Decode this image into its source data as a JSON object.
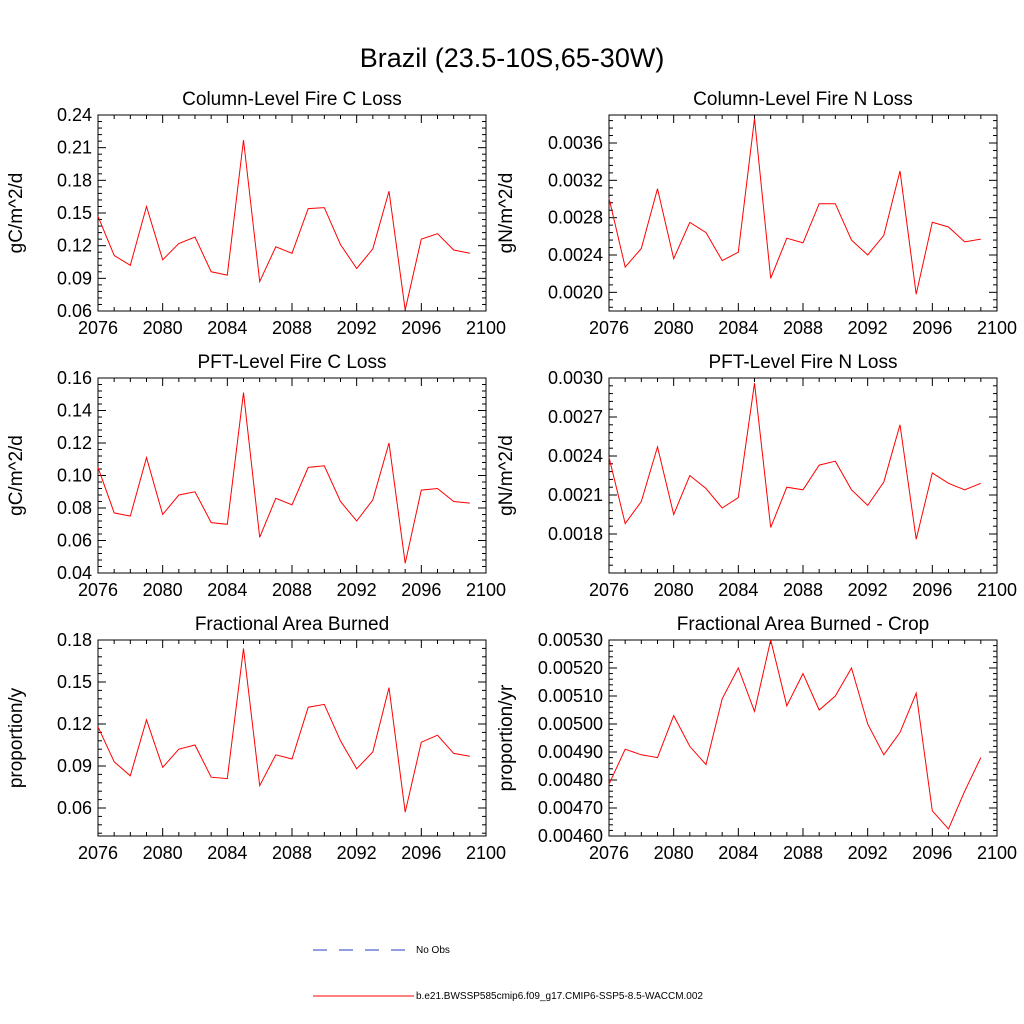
{
  "title": "Brazil (23.5-10S,65-30W)",
  "legend": {
    "obs_label": "No Obs",
    "model_label": "b.e21.BWSSP585cmip6.f09_g17.CMIP6-SSP5-8.5-WACCM.002",
    "obs_color": "#1f3fbf",
    "model_color": "#ff0000"
  },
  "chart_data": [
    {
      "type": "line",
      "title": "Column-Level Fire C Loss",
      "ylabel": "gC/m^2/d",
      "xlim": [
        2076,
        2100
      ],
      "ylim": [
        0.06,
        0.24
      ],
      "xticks": [
        2076,
        2080,
        2084,
        2088,
        2092,
        2096,
        2100
      ],
      "yticks": [
        0.06,
        0.09,
        0.12,
        0.15,
        0.18,
        0.21,
        0.24
      ],
      "ytick_labels": [
        "0.06",
        "0.09",
        "0.12",
        "0.15",
        "0.18",
        "0.21",
        "0.24"
      ],
      "x": [
        2076,
        2077,
        2078,
        2079,
        2080,
        2081,
        2082,
        2083,
        2084,
        2085,
        2086,
        2087,
        2088,
        2089,
        2090,
        2091,
        2092,
        2093,
        2094,
        2095,
        2096,
        2097,
        2098,
        2099
      ],
      "values": [
        0.147,
        0.111,
        0.102,
        0.156,
        0.107,
        0.122,
        0.128,
        0.096,
        0.093,
        0.217,
        0.087,
        0.119,
        0.113,
        0.154,
        0.155,
        0.121,
        0.099,
        0.117,
        0.17,
        0.061,
        0.126,
        0.131,
        0.116,
        0.113
      ]
    },
    {
      "type": "line",
      "title": "Column-Level Fire N Loss",
      "ylabel": "gN/m^2/d",
      "xlim": [
        2076,
        2100
      ],
      "ylim": [
        0.0018,
        0.0039
      ],
      "xticks": [
        2076,
        2080,
        2084,
        2088,
        2092,
        2096,
        2100
      ],
      "yticks": [
        0.002,
        0.0024,
        0.0028,
        0.0032,
        0.0036
      ],
      "ytick_labels": [
        "0.0020",
        "0.0024",
        "0.0028",
        "0.0032",
        "0.0036"
      ],
      "x": [
        2076,
        2077,
        2078,
        2079,
        2080,
        2081,
        2082,
        2083,
        2084,
        2085,
        2086,
        2087,
        2088,
        2089,
        2090,
        2091,
        2092,
        2093,
        2094,
        2095,
        2096,
        2097,
        2098,
        2099
      ],
      "values": [
        0.00301,
        0.00227,
        0.00247,
        0.00311,
        0.00236,
        0.00275,
        0.00264,
        0.00234,
        0.00243,
        0.00386,
        0.00215,
        0.00258,
        0.00253,
        0.00295,
        0.00295,
        0.00256,
        0.0024,
        0.00261,
        0.0033,
        0.00198,
        0.00275,
        0.0027,
        0.00254,
        0.00257
      ]
    },
    {
      "type": "line",
      "title": "PFT-Level Fire C Loss",
      "ylabel": "gC/m^2/d",
      "xlim": [
        2076,
        2100
      ],
      "ylim": [
        0.04,
        0.16
      ],
      "xticks": [
        2076,
        2080,
        2084,
        2088,
        2092,
        2096,
        2100
      ],
      "yticks": [
        0.04,
        0.06,
        0.08,
        0.1,
        0.12,
        0.14,
        0.16
      ],
      "ytick_labels": [
        "0.04",
        "0.06",
        "0.08",
        "0.10",
        "0.12",
        "0.14",
        "0.16"
      ],
      "x": [
        2076,
        2077,
        2078,
        2079,
        2080,
        2081,
        2082,
        2083,
        2084,
        2085,
        2086,
        2087,
        2088,
        2089,
        2090,
        2091,
        2092,
        2093,
        2094,
        2095,
        2096,
        2097,
        2098,
        2099
      ],
      "values": [
        0.105,
        0.077,
        0.075,
        0.111,
        0.076,
        0.088,
        0.09,
        0.071,
        0.07,
        0.151,
        0.062,
        0.086,
        0.082,
        0.105,
        0.106,
        0.084,
        0.072,
        0.085,
        0.12,
        0.046,
        0.091,
        0.092,
        0.084,
        0.083
      ]
    },
    {
      "type": "line",
      "title": "PFT-Level Fire N Loss",
      "ylabel": "gN/m^2/d",
      "xlim": [
        2076,
        2100
      ],
      "ylim": [
        0.0015,
        0.003
      ],
      "xticks": [
        2076,
        2080,
        2084,
        2088,
        2092,
        2096,
        2100
      ],
      "yticks": [
        0.0018,
        0.0021,
        0.0024,
        0.0027,
        0.003
      ],
      "ytick_labels": [
        "0.0018",
        "0.0021",
        "0.0024",
        "0.0027",
        "0.0030"
      ],
      "x": [
        2076,
        2077,
        2078,
        2079,
        2080,
        2081,
        2082,
        2083,
        2084,
        2085,
        2086,
        2087,
        2088,
        2089,
        2090,
        2091,
        2092,
        2093,
        2094,
        2095,
        2096,
        2097,
        2098,
        2099
      ],
      "values": [
        0.00239,
        0.00188,
        0.00205,
        0.00247,
        0.00195,
        0.00225,
        0.00215,
        0.002,
        0.00208,
        0.00296,
        0.00185,
        0.00216,
        0.00214,
        0.00233,
        0.00236,
        0.00214,
        0.00202,
        0.0022,
        0.00264,
        0.00176,
        0.00227,
        0.00219,
        0.00214,
        0.00219
      ]
    },
    {
      "type": "line",
      "title": "Fractional Area Burned",
      "ylabel": "proportion/y",
      "xlim": [
        2076,
        2100
      ],
      "ylim": [
        0.04,
        0.18
      ],
      "xticks": [
        2076,
        2080,
        2084,
        2088,
        2092,
        2096,
        2100
      ],
      "yticks": [
        0.06,
        0.09,
        0.12,
        0.15,
        0.18
      ],
      "ytick_labels": [
        "0.06",
        "0.09",
        "0.12",
        "0.15",
        "0.18"
      ],
      "x": [
        2076,
        2077,
        2078,
        2079,
        2080,
        2081,
        2082,
        2083,
        2084,
        2085,
        2086,
        2087,
        2088,
        2089,
        2090,
        2091,
        2092,
        2093,
        2094,
        2095,
        2096,
        2097,
        2098,
        2099
      ],
      "values": [
        0.118,
        0.093,
        0.083,
        0.123,
        0.089,
        0.102,
        0.105,
        0.082,
        0.081,
        0.174,
        0.076,
        0.098,
        0.095,
        0.132,
        0.134,
        0.108,
        0.088,
        0.1,
        0.146,
        0.057,
        0.107,
        0.112,
        0.099,
        0.097
      ]
    },
    {
      "type": "line",
      "title": "Fractional Area Burned - Crop",
      "ylabel": "proportion/yr",
      "xlim": [
        2076,
        2100
      ],
      "ylim": [
        0.0046,
        0.0053
      ],
      "xticks": [
        2076,
        2080,
        2084,
        2088,
        2092,
        2096,
        2100
      ],
      "yticks": [
        0.0046,
        0.0047,
        0.0048,
        0.0049,
        0.005,
        0.0051,
        0.0052,
        0.0053
      ],
      "ytick_labels": [
        "0.00460",
        "0.00470",
        "0.00480",
        "0.00490",
        "0.00500",
        "0.00510",
        "0.00520",
        "0.00530"
      ],
      "x": [
        2076,
        2077,
        2078,
        2079,
        2080,
        2081,
        2082,
        2083,
        2084,
        2085,
        2086,
        2087,
        2088,
        2089,
        2090,
        2091,
        2092,
        2093,
        2094,
        2095,
        2096,
        2097,
        2098,
        2099
      ],
      "values": [
        0.004785,
        0.00491,
        0.00489,
        0.00488,
        0.00503,
        0.00492,
        0.004855,
        0.00509,
        0.0052,
        0.005045,
        0.0053,
        0.005065,
        0.00518,
        0.00505,
        0.0051,
        0.0052,
        0.005,
        0.00489,
        0.00497,
        0.00511,
        0.00469,
        0.004625,
        0.00476,
        0.00488
      ]
    }
  ]
}
